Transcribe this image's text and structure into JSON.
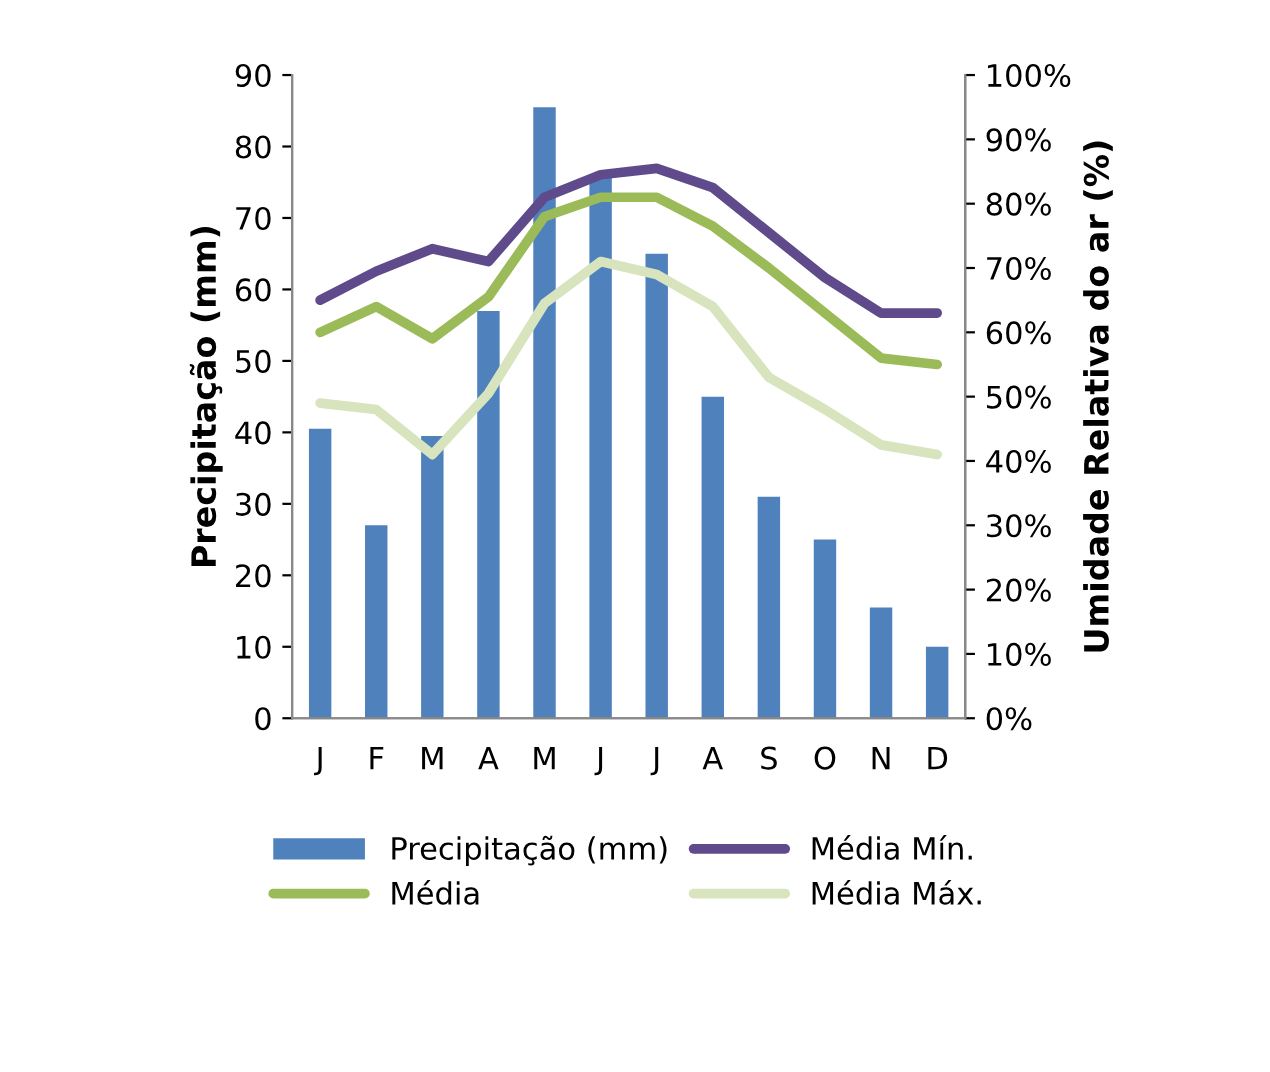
{
  "chart_data": {
    "type": "bar",
    "categories": [
      "J",
      "F",
      "M",
      "A",
      "M",
      "J",
      "J",
      "A",
      "S",
      "O",
      "N",
      "D"
    ],
    "ylabel": "Precipitação (mm)",
    "y2label": "Umidade Relativa do ar (%)",
    "ylim": [
      0,
      90
    ],
    "yticks": [
      0,
      10,
      20,
      30,
      40,
      50,
      60,
      70,
      80,
      90
    ],
    "y2lim": [
      0,
      100
    ],
    "y2ticks": [
      {
        "value": 0,
        "label": "0%"
      },
      {
        "value": 10,
        "label": "10%"
      },
      {
        "value": 20,
        "label": "20%"
      },
      {
        "value": 30,
        "label": "30%"
      },
      {
        "value": 40,
        "label": "40%"
      },
      {
        "value": 50,
        "label": "50%"
      },
      {
        "value": 60,
        "label": "60%"
      },
      {
        "value": 70,
        "label": "70%"
      },
      {
        "value": 80,
        "label": "80%"
      },
      {
        "value": 90,
        "label": "90%"
      },
      {
        "value": 100,
        "label": "100%"
      }
    ],
    "grid": false,
    "legend": "bottom",
    "series": [
      {
        "name": "Precipitação (mm)",
        "color": "#4f81bd",
        "values": [
          40.5,
          27,
          39.5,
          57,
          85.5,
          76,
          65,
          45,
          31,
          25,
          15.5,
          10
        ]
      },
      {
        "name": "Média Mín.",
        "type": "line",
        "axis": "y2",
        "color": "#5f4b8b",
        "values": [
          65,
          69.5,
          73,
          71,
          81,
          84.5,
          85.5,
          82.5,
          75.5,
          68.5,
          63,
          63
        ]
      },
      {
        "name": "Média",
        "type": "line",
        "axis": "y2",
        "color": "#9bbb59",
        "values": [
          60,
          64,
          59,
          65.5,
          78,
          81,
          81,
          76.5,
          70,
          63,
          56,
          55
        ]
      },
      {
        "name": "Média Máx.",
        "type": "line",
        "axis": "y2",
        "color": "#d7e4bd",
        "values": [
          49,
          48,
          41,
          50.5,
          64.5,
          71,
          69,
          64,
          53,
          48,
          42.5,
          41
        ]
      }
    ]
  }
}
